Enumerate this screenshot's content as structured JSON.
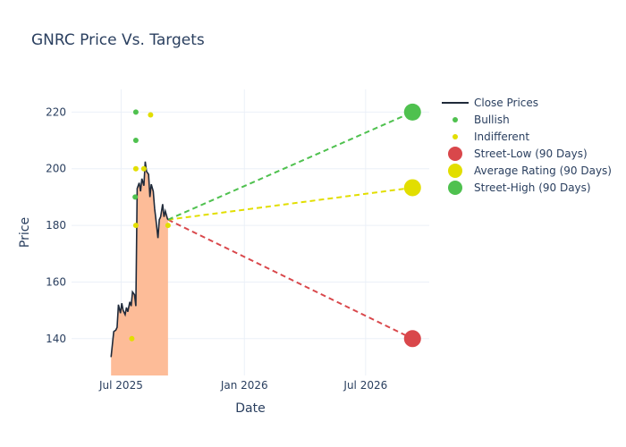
{
  "chart_data": {
    "type": "line",
    "title": "GNRC Price Vs. Targets",
    "xlabel": "Date",
    "ylabel": "Price",
    "x_range": [
      "2025-04-18",
      "2026-10-04"
    ],
    "ylim": [
      127,
      228
    ],
    "x_ticks": [
      {
        "date": "2025-07-01",
        "label": "Jul 2025"
      },
      {
        "date": "2026-01-01",
        "label": "Jan 2026"
      },
      {
        "date": "2026-07-01",
        "label": "Jul 2026"
      }
    ],
    "y_ticks": [
      140,
      160,
      180,
      200,
      220
    ],
    "grid": true,
    "legend_position": "right",
    "colors": {
      "close": "#1f2a3a",
      "fill": "#fdbc98",
      "bullish": "#4fc14f",
      "indifferent": "#e2de00",
      "street_low": "#d9474b",
      "average": "#e2de00",
      "street_high": "#4fc14f"
    },
    "series": [
      {
        "name": "Close Prices",
        "kind": "line",
        "points": [
          [
            "2025-06-16",
            133.5
          ],
          [
            "2025-06-18",
            138
          ],
          [
            "2025-06-20",
            142.5
          ],
          [
            "2025-06-23",
            143
          ],
          [
            "2025-06-25",
            144
          ],
          [
            "2025-06-27",
            152
          ],
          [
            "2025-06-30",
            149
          ],
          [
            "2025-07-02",
            152.5
          ],
          [
            "2025-07-04",
            150
          ],
          [
            "2025-07-07",
            148.5
          ],
          [
            "2025-07-09",
            151
          ],
          [
            "2025-07-11",
            149.5
          ],
          [
            "2025-07-14",
            153
          ],
          [
            "2025-07-16",
            151.5
          ],
          [
            "2025-07-18",
            156.5
          ],
          [
            "2025-07-21",
            155.5
          ],
          [
            "2025-07-23",
            151.5
          ],
          [
            "2025-07-25",
            193
          ],
          [
            "2025-07-28",
            195
          ],
          [
            "2025-07-30",
            192
          ],
          [
            "2025-08-01",
            196.5
          ],
          [
            "2025-08-04",
            194
          ],
          [
            "2025-08-06",
            202.5
          ],
          [
            "2025-08-08",
            199
          ],
          [
            "2025-08-11",
            198
          ],
          [
            "2025-08-13",
            190
          ],
          [
            "2025-08-15",
            194.5
          ],
          [
            "2025-08-18",
            192
          ],
          [
            "2025-08-20",
            186
          ],
          [
            "2025-08-22",
            182
          ],
          [
            "2025-08-25",
            175.5
          ],
          [
            "2025-08-27",
            182
          ],
          [
            "2025-08-29",
            183
          ],
          [
            "2025-09-01",
            187.5
          ],
          [
            "2025-09-03",
            183
          ],
          [
            "2025-09-05",
            185
          ],
          [
            "2025-09-08",
            182.5
          ],
          [
            "2025-09-09",
            182
          ]
        ]
      },
      {
        "name": "Bullish",
        "kind": "markers",
        "points": [
          [
            "2025-07-23",
            220
          ],
          [
            "2025-07-23",
            210
          ],
          [
            "2025-07-22",
            190
          ]
        ]
      },
      {
        "name": "Indifferent",
        "kind": "markers",
        "points": [
          [
            "2025-07-17",
            140
          ],
          [
            "2025-07-23",
            200
          ],
          [
            "2025-07-23",
            180
          ],
          [
            "2025-08-04",
            200
          ],
          [
            "2025-08-14",
            219
          ],
          [
            "2025-09-09",
            180
          ]
        ]
      },
      {
        "name": "Street-Low (90 Days)",
        "kind": "target",
        "points": [
          [
            "2026-09-09",
            140
          ]
        ]
      },
      {
        "name": "Average Rating (90 Days)",
        "kind": "target",
        "points": [
          [
            "2026-09-09",
            193.3
          ]
        ]
      },
      {
        "name": "Street-High (90 Days)",
        "kind": "target",
        "points": [
          [
            "2026-09-09",
            220
          ]
        ]
      }
    ],
    "projection_start": [
      "2025-09-09",
      182
    ]
  }
}
